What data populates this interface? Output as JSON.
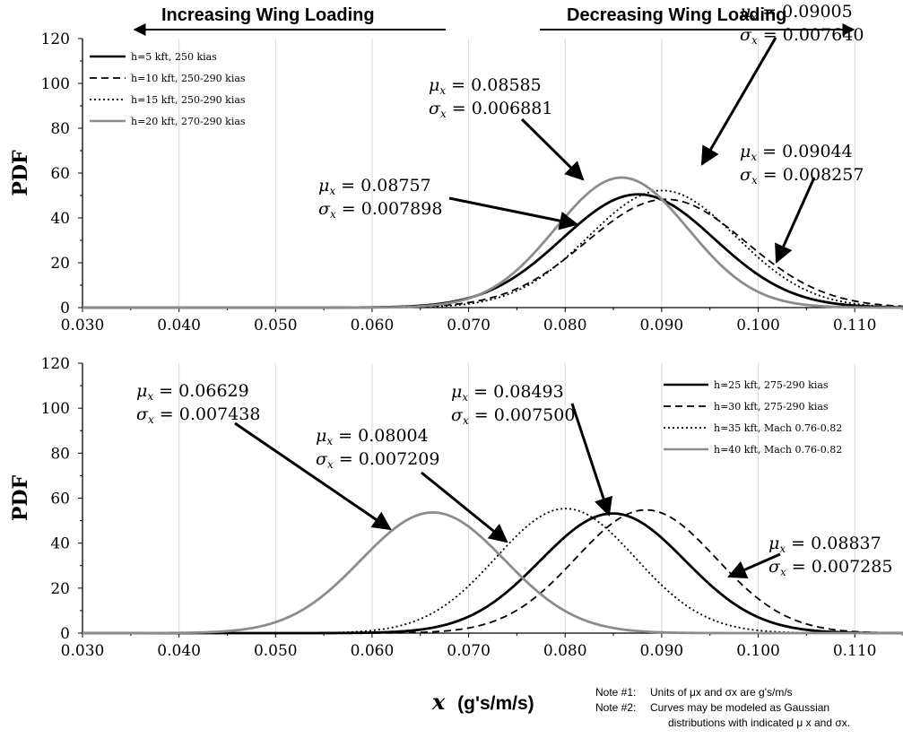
{
  "header": {
    "left_label": "Increasing Wing Loading",
    "right_label": "Decreasing Wing Loading"
  },
  "x_axis": {
    "title_var": "x",
    "title_units": "(g's/m/s)"
  },
  "notes": {
    "line1_prefix": "Note #1:",
    "line1_text": "Units of μx and σx are g's/m/s",
    "line2_prefix": "Note #2:",
    "line2_text": "Curves may be modeled as Gaussian",
    "line3_text": "distributions with indicated μ x and σx."
  },
  "chart_data": [
    {
      "type": "line",
      "panel": "top",
      "xlabel": "",
      "ylabel": "PDF",
      "xlim": [
        0.03,
        0.115
      ],
      "ylim": [
        0,
        120
      ],
      "x_ticks": [
        "0.030",
        "0.040",
        "0.050",
        "0.060",
        "0.070",
        "0.080",
        "0.090",
        "0.100",
        "0.110"
      ],
      "y_ticks": [
        "0",
        "20",
        "40",
        "60",
        "80",
        "100",
        "120"
      ],
      "grid": "vertical",
      "legend_position": "top-left",
      "series": [
        {
          "name": "h=5 kft, 250 kias",
          "style": "solid",
          "color": "#000000",
          "mu": 0.08757,
          "sigma": 0.007898
        },
        {
          "name": "h=10 kft, 250-290 kias",
          "style": "dashed",
          "color": "#000000",
          "mu": 0.09044,
          "sigma": 0.008257
        },
        {
          "name": "h=15 kft, 250-290 kias",
          "style": "dotted",
          "color": "#000000",
          "mu": 0.09005,
          "sigma": 0.00764
        },
        {
          "name": "h=20 kft, 270-290 kias",
          "style": "solid",
          "color": "#8c8c8c",
          "mu": 0.08585,
          "sigma": 0.006881
        }
      ],
      "annotations": [
        {
          "mu": "0.08585",
          "sigma": "0.006881"
        },
        {
          "mu": "0.09005",
          "sigma": "0.007640"
        },
        {
          "mu": "0.08757",
          "sigma": "0.007898"
        },
        {
          "mu": "0.09044",
          "sigma": "0.008257"
        }
      ]
    },
    {
      "type": "line",
      "panel": "bottom",
      "xlabel": "x (g's/m/s)",
      "ylabel": "PDF",
      "xlim": [
        0.03,
        0.115
      ],
      "ylim": [
        0,
        120
      ],
      "x_ticks": [
        "0.030",
        "0.040",
        "0.050",
        "0.060",
        "0.070",
        "0.080",
        "0.090",
        "0.100",
        "0.110"
      ],
      "y_ticks": [
        "0",
        "20",
        "40",
        "60",
        "80",
        "100",
        "120"
      ],
      "grid": "vertical",
      "legend_position": "top-right",
      "series": [
        {
          "name": "h=25 kft, 275-290  kias",
          "style": "solid",
          "color": "#000000",
          "mu": 0.08493,
          "sigma": 0.0075
        },
        {
          "name": "h=30 kft, 275-290  kias",
          "style": "dashed",
          "color": "#000000",
          "mu": 0.08837,
          "sigma": 0.007285
        },
        {
          "name": "h=35 kft, Mach 0.76-0.82",
          "style": "dotted",
          "color": "#000000",
          "mu": 0.08004,
          "sigma": 0.007209
        },
        {
          "name": "h=40 kft, Mach 0.76-0.82",
          "style": "solid",
          "color": "#8c8c8c",
          "mu": 0.06629,
          "sigma": 0.007438
        }
      ],
      "annotations": [
        {
          "mu": "0.06629",
          "sigma": "0.007438"
        },
        {
          "mu": "0.08004",
          "sigma": "0.007209"
        },
        {
          "mu": "0.08493",
          "sigma": "0.007500"
        },
        {
          "mu": "0.08837",
          "sigma": "0.007285"
        }
      ]
    }
  ]
}
